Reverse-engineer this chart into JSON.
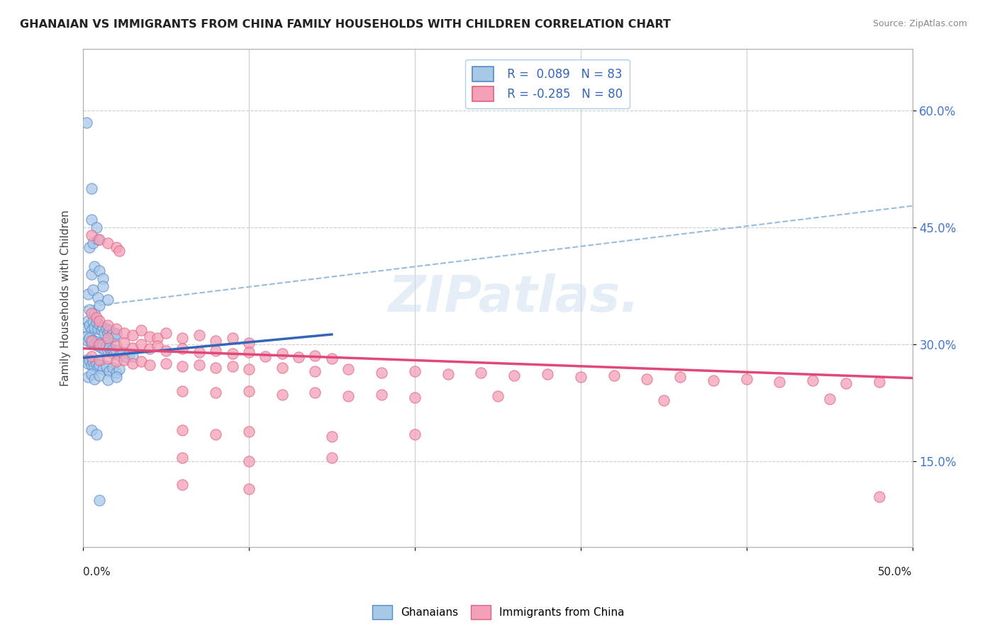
{
  "title": "GHANAIAN VS IMMIGRANTS FROM CHINA FAMILY HOUSEHOLDS WITH CHILDREN CORRELATION CHART",
  "source": "Source: ZipAtlas.com",
  "ylabel": "Family Households with Children",
  "yticks": [
    "15.0%",
    "30.0%",
    "45.0%",
    "60.0%"
  ],
  "ytick_vals": [
    0.15,
    0.3,
    0.45,
    0.6
  ],
  "xlim": [
    0.0,
    0.5
  ],
  "ylim": [
    0.04,
    0.68
  ],
  "legend_labels": [
    "Ghanaians",
    "Immigrants from China"
  ],
  "color_blue": "#a8c8e8",
  "color_pink": "#f4a0b8",
  "edge_blue": "#5588cc",
  "edge_pink": "#e06080",
  "line_blue": "#3366bb",
  "line_pink": "#e04878",
  "line_dash_color": "#99bbdd",
  "blue_scatter": [
    [
      0.002,
      0.585
    ],
    [
      0.005,
      0.5
    ],
    [
      0.005,
      0.46
    ],
    [
      0.008,
      0.45
    ],
    [
      0.004,
      0.425
    ],
    [
      0.006,
      0.43
    ],
    [
      0.009,
      0.435
    ],
    [
      0.005,
      0.39
    ],
    [
      0.007,
      0.4
    ],
    [
      0.01,
      0.395
    ],
    [
      0.012,
      0.385
    ],
    [
      0.003,
      0.365
    ],
    [
      0.006,
      0.37
    ],
    [
      0.009,
      0.36
    ],
    [
      0.012,
      0.375
    ],
    [
      0.015,
      0.358
    ],
    [
      0.004,
      0.345
    ],
    [
      0.007,
      0.34
    ],
    [
      0.01,
      0.35
    ],
    [
      0.002,
      0.322
    ],
    [
      0.003,
      0.33
    ],
    [
      0.004,
      0.325
    ],
    [
      0.005,
      0.318
    ],
    [
      0.006,
      0.33
    ],
    [
      0.007,
      0.322
    ],
    [
      0.008,
      0.328
    ],
    [
      0.009,
      0.32
    ],
    [
      0.01,
      0.326
    ],
    [
      0.011,
      0.318
    ],
    [
      0.012,
      0.322
    ],
    [
      0.013,
      0.315
    ],
    [
      0.014,
      0.32
    ],
    [
      0.015,
      0.315
    ],
    [
      0.016,
      0.318
    ],
    [
      0.017,
      0.312
    ],
    [
      0.018,
      0.316
    ],
    [
      0.019,
      0.31
    ],
    [
      0.02,
      0.314
    ],
    [
      0.002,
      0.31
    ],
    [
      0.003,
      0.305
    ],
    [
      0.004,
      0.308
    ],
    [
      0.005,
      0.302
    ],
    [
      0.006,
      0.306
    ],
    [
      0.007,
      0.3
    ],
    [
      0.008,
      0.304
    ],
    [
      0.009,
      0.298
    ],
    [
      0.01,
      0.302
    ],
    [
      0.011,
      0.296
    ],
    [
      0.012,
      0.3
    ],
    [
      0.013,
      0.294
    ],
    [
      0.014,
      0.298
    ],
    [
      0.015,
      0.292
    ],
    [
      0.016,
      0.296
    ],
    [
      0.017,
      0.29
    ],
    [
      0.018,
      0.294
    ],
    [
      0.019,
      0.288
    ],
    [
      0.02,
      0.292
    ],
    [
      0.022,
      0.286
    ],
    [
      0.024,
      0.29
    ],
    [
      0.026,
      0.284
    ],
    [
      0.028,
      0.288
    ],
    [
      0.03,
      0.285
    ],
    [
      0.002,
      0.28
    ],
    [
      0.003,
      0.276
    ],
    [
      0.004,
      0.28
    ],
    [
      0.005,
      0.274
    ],
    [
      0.006,
      0.278
    ],
    [
      0.007,
      0.272
    ],
    [
      0.008,
      0.276
    ],
    [
      0.009,
      0.27
    ],
    [
      0.01,
      0.274
    ],
    [
      0.012,
      0.268
    ],
    [
      0.014,
      0.272
    ],
    [
      0.016,
      0.266
    ],
    [
      0.018,
      0.27
    ],
    [
      0.02,
      0.264
    ],
    [
      0.022,
      0.268
    ],
    [
      0.003,
      0.258
    ],
    [
      0.005,
      0.262
    ],
    [
      0.007,
      0.256
    ],
    [
      0.01,
      0.26
    ],
    [
      0.015,
      0.255
    ],
    [
      0.02,
      0.258
    ],
    [
      0.005,
      0.19
    ],
    [
      0.008,
      0.185
    ],
    [
      0.01,
      0.1
    ]
  ],
  "pink_scatter": [
    [
      0.005,
      0.44
    ],
    [
      0.01,
      0.435
    ],
    [
      0.015,
      0.43
    ],
    [
      0.02,
      0.425
    ],
    [
      0.022,
      0.42
    ],
    [
      0.005,
      0.34
    ],
    [
      0.008,
      0.335
    ],
    [
      0.01,
      0.33
    ],
    [
      0.015,
      0.325
    ],
    [
      0.02,
      0.32
    ],
    [
      0.025,
      0.315
    ],
    [
      0.03,
      0.312
    ],
    [
      0.035,
      0.318
    ],
    [
      0.04,
      0.31
    ],
    [
      0.045,
      0.308
    ],
    [
      0.05,
      0.315
    ],
    [
      0.06,
      0.308
    ],
    [
      0.07,
      0.312
    ],
    [
      0.08,
      0.305
    ],
    [
      0.09,
      0.308
    ],
    [
      0.1,
      0.302
    ],
    [
      0.005,
      0.305
    ],
    [
      0.01,
      0.3
    ],
    [
      0.015,
      0.308
    ],
    [
      0.02,
      0.298
    ],
    [
      0.025,
      0.302
    ],
    [
      0.03,
      0.296
    ],
    [
      0.035,
      0.3
    ],
    [
      0.04,
      0.295
    ],
    [
      0.045,
      0.298
    ],
    [
      0.05,
      0.292
    ],
    [
      0.06,
      0.295
    ],
    [
      0.07,
      0.29
    ],
    [
      0.08,
      0.292
    ],
    [
      0.09,
      0.288
    ],
    [
      0.1,
      0.29
    ],
    [
      0.11,
      0.285
    ],
    [
      0.12,
      0.288
    ],
    [
      0.13,
      0.284
    ],
    [
      0.14,
      0.286
    ],
    [
      0.15,
      0.282
    ],
    [
      0.005,
      0.285
    ],
    [
      0.01,
      0.28
    ],
    [
      0.015,
      0.282
    ],
    [
      0.02,
      0.278
    ],
    [
      0.025,
      0.28
    ],
    [
      0.03,
      0.276
    ],
    [
      0.035,
      0.278
    ],
    [
      0.04,
      0.274
    ],
    [
      0.05,
      0.276
    ],
    [
      0.06,
      0.272
    ],
    [
      0.07,
      0.274
    ],
    [
      0.08,
      0.27
    ],
    [
      0.09,
      0.272
    ],
    [
      0.1,
      0.268
    ],
    [
      0.12,
      0.27
    ],
    [
      0.14,
      0.266
    ],
    [
      0.16,
      0.268
    ],
    [
      0.18,
      0.264
    ],
    [
      0.2,
      0.266
    ],
    [
      0.22,
      0.262
    ],
    [
      0.24,
      0.264
    ],
    [
      0.26,
      0.26
    ],
    [
      0.28,
      0.262
    ],
    [
      0.3,
      0.258
    ],
    [
      0.32,
      0.26
    ],
    [
      0.34,
      0.256
    ],
    [
      0.36,
      0.258
    ],
    [
      0.38,
      0.254
    ],
    [
      0.4,
      0.256
    ],
    [
      0.42,
      0.252
    ],
    [
      0.44,
      0.254
    ],
    [
      0.46,
      0.25
    ],
    [
      0.48,
      0.252
    ],
    [
      0.06,
      0.24
    ],
    [
      0.08,
      0.238
    ],
    [
      0.1,
      0.24
    ],
    [
      0.12,
      0.236
    ],
    [
      0.14,
      0.238
    ],
    [
      0.16,
      0.234
    ],
    [
      0.18,
      0.236
    ],
    [
      0.2,
      0.232
    ],
    [
      0.25,
      0.234
    ],
    [
      0.35,
      0.228
    ],
    [
      0.45,
      0.23
    ],
    [
      0.06,
      0.19
    ],
    [
      0.08,
      0.185
    ],
    [
      0.1,
      0.188
    ],
    [
      0.15,
      0.182
    ],
    [
      0.2,
      0.185
    ],
    [
      0.06,
      0.155
    ],
    [
      0.1,
      0.15
    ],
    [
      0.15,
      0.155
    ],
    [
      0.06,
      0.12
    ],
    [
      0.1,
      0.115
    ],
    [
      0.48,
      0.105
    ]
  ],
  "blue_line": [
    [
      0.0,
      0.283
    ],
    [
      0.15,
      0.313
    ]
  ],
  "pink_line": [
    [
      0.0,
      0.295
    ],
    [
      0.5,
      0.257
    ]
  ],
  "dash_line": [
    [
      0.0,
      0.348
    ],
    [
      0.5,
      0.478
    ]
  ]
}
